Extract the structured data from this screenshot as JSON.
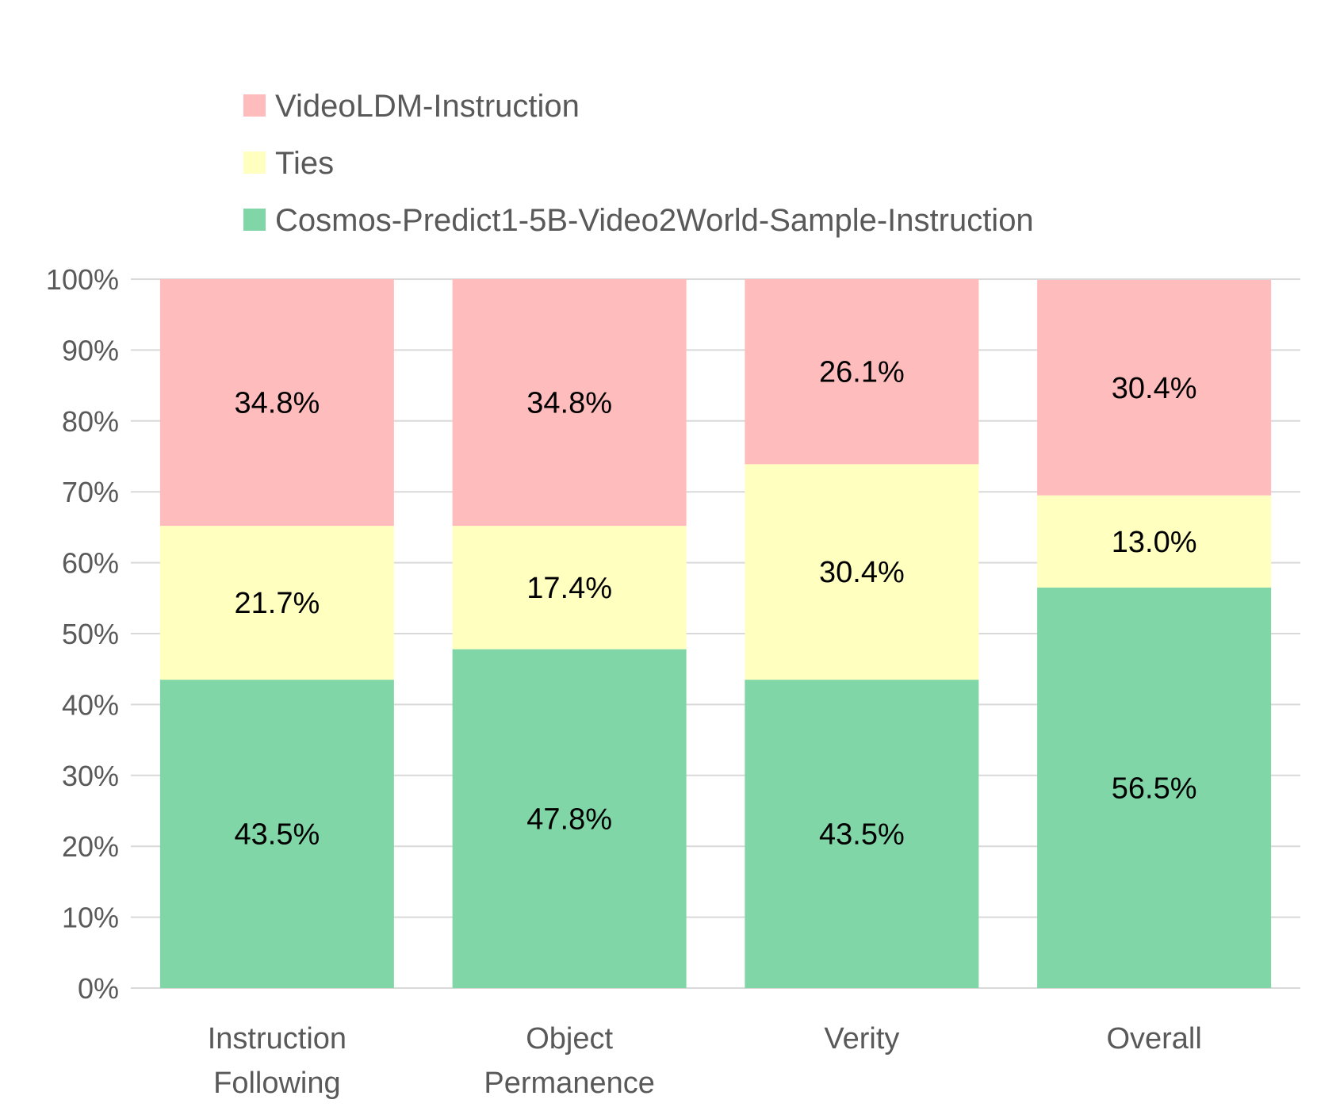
{
  "chart_data": {
    "type": "bar",
    "stacked": true,
    "percent_stacked": true,
    "categories": [
      [
        "Instruction",
        "Following"
      ],
      [
        "Object",
        "Permanence"
      ],
      [
        "Verity"
      ],
      [
        "Overall"
      ]
    ],
    "series": [
      {
        "name": "Cosmos-Predict1-5B-Video2World-Sample-Instruction",
        "values": [
          43.5,
          47.8,
          43.5,
          56.5
        ],
        "labels": [
          "43.5%",
          "47.8%",
          "43.5%",
          "56.5%"
        ],
        "color": "#80d6a6"
      },
      {
        "name": "Ties",
        "values": [
          21.7,
          17.4,
          30.4,
          13.0
        ],
        "labels": [
          "21.7%",
          "17.4%",
          "30.4%",
          "13.0%"
        ],
        "color": "#ffffc0"
      },
      {
        "name": "VideoLDM-Instruction",
        "values": [
          34.8,
          34.8,
          26.1,
          30.4
        ],
        "labels": [
          "34.8%",
          "34.8%",
          "26.1%",
          "30.4%"
        ],
        "color": "#ffbcbc"
      }
    ],
    "legend_order": [
      "VideoLDM-Instruction",
      "Ties",
      "Cosmos-Predict1-5B-Video2World-Sample-Instruction"
    ],
    "legend_position": "top",
    "y_ticks": [
      "0%",
      "10%",
      "20%",
      "30%",
      "40%",
      "50%",
      "60%",
      "70%",
      "80%",
      "90%",
      "100%"
    ],
    "ylim": [
      0,
      100
    ],
    "grid": true,
    "title": "",
    "xlabel": "",
    "ylabel": ""
  }
}
